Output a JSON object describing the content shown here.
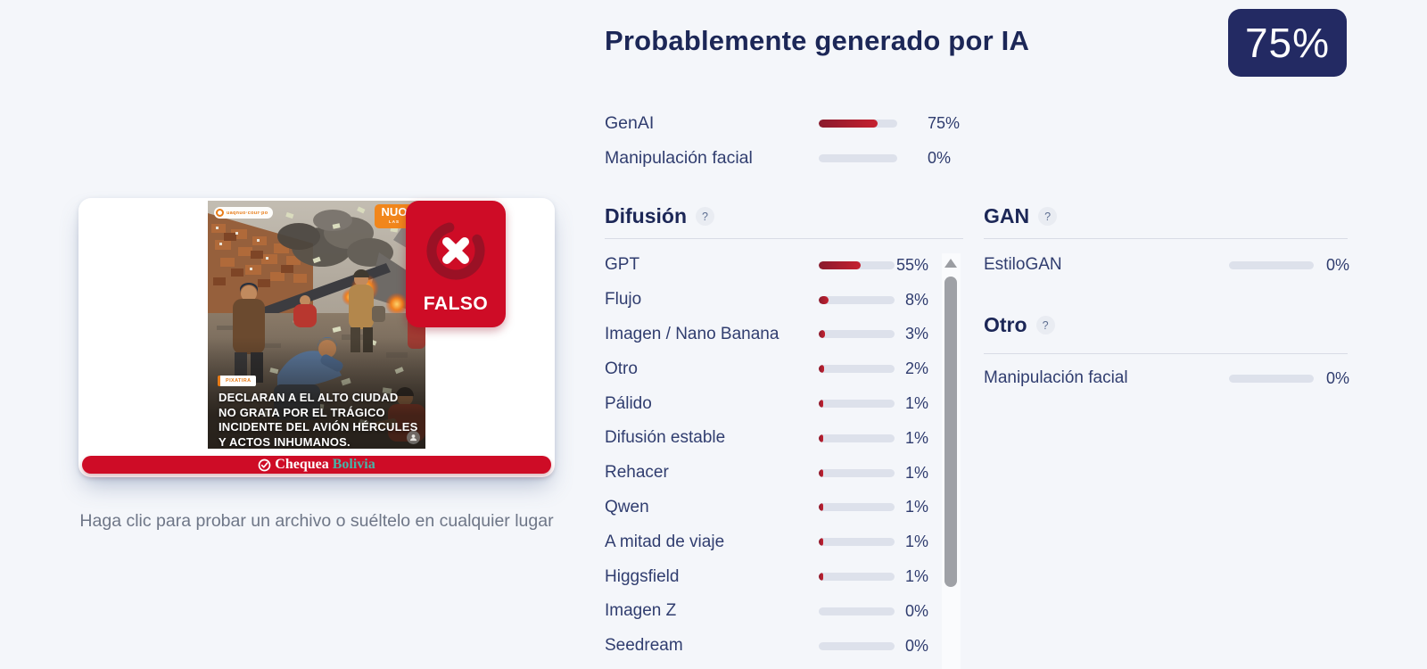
{
  "result": {
    "title": "Probablemente generado por IA",
    "score_badge": "75%",
    "summary": [
      {
        "label": "GenAI",
        "value": 75,
        "pct": "75%"
      },
      {
        "label": "Manipulación facial",
        "value": 0,
        "pct": "0%"
      }
    ]
  },
  "panels": {
    "difusion": {
      "title": "Difusión",
      "help": "?",
      "rows": [
        {
          "label": "GPT",
          "value": 55,
          "pct": "55%"
        },
        {
          "label": "Flujo",
          "value": 8,
          "pct": "8%"
        },
        {
          "label": "Imagen / Nano Banana",
          "value": 3,
          "pct": "3%"
        },
        {
          "label": "Otro",
          "value": 2,
          "pct": "2%"
        },
        {
          "label": "Pálido",
          "value": 1,
          "pct": "1%"
        },
        {
          "label": "Difusión estable",
          "value": 1,
          "pct": "1%"
        },
        {
          "label": "Rehacer",
          "value": 1,
          "pct": "1%"
        },
        {
          "label": "Qwen",
          "value": 1,
          "pct": "1%"
        },
        {
          "label": "A mitad de viaje",
          "value": 1,
          "pct": "1%"
        },
        {
          "label": "Higgsfield",
          "value": 1,
          "pct": "1%"
        },
        {
          "label": "Imagen Z",
          "value": 0,
          "pct": "0%"
        },
        {
          "label": "Seedream",
          "value": 0,
          "pct": "0%"
        }
      ]
    },
    "gan": {
      "title": "GAN",
      "help": "?",
      "rows": [
        {
          "label": "EstiloGAN",
          "value": 0,
          "pct": "0%"
        }
      ]
    },
    "otro": {
      "title": "Otro",
      "help": "?",
      "rows": [
        {
          "label": "Manipulación facial",
          "value": 0,
          "pct": "0%"
        }
      ]
    }
  },
  "uploader": {
    "hint": "Haga clic para probar un archivo o suéltelo en cualquier lugar",
    "image": {
      "watermark_handle": "uaqnuo·cour·po",
      "logo": "NUO",
      "logo_sub": "LAS",
      "tag": "PIXATIRA",
      "caption_lines": [
        "DECLARAN A EL ALTO CIUDAD",
        "NO GRATA POR EL TRÁGICO",
        "INCIDENTE DEL AVIÓN HÉRCULES",
        "Y ACTOS INHUMANOS."
      ],
      "stamp": "FALSO",
      "footer_brand_1": "Chequea",
      "footer_brand_2": "Bolivia"
    }
  },
  "colors": {
    "navy": "#1c2757",
    "badge_navy": "#232a63",
    "bar_dark_red": "#8a1b2d",
    "bar_red": "#c5202f",
    "brand_red": "#ce0c26",
    "teal": "#45b5a8",
    "track_gray": "#dde1eb",
    "background": "#f4f6fa"
  }
}
